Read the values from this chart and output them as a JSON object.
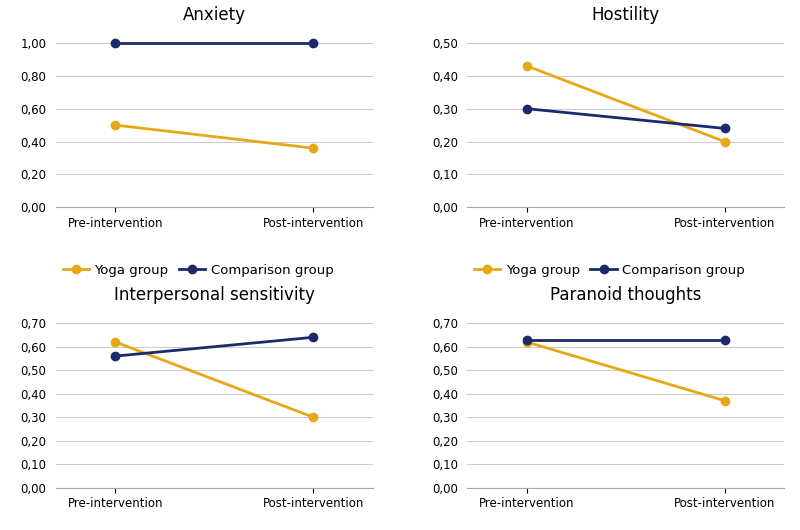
{
  "subplots": [
    {
      "title": "Anxiety",
      "ylim": [
        0,
        1.1
      ],
      "yticks": [
        0.0,
        0.2,
        0.4,
        0.6,
        0.8,
        1.0
      ],
      "yoga": [
        0.5,
        0.36
      ],
      "comparison": [
        1.0,
        1.0
      ]
    },
    {
      "title": "Hostility",
      "ylim": [
        0,
        0.55
      ],
      "yticks": [
        0.0,
        0.1,
        0.2,
        0.3,
        0.4,
        0.5
      ],
      "yoga": [
        0.43,
        0.2
      ],
      "comparison": [
        0.3,
        0.24
      ]
    },
    {
      "title": "Interpersonal sensitivity",
      "ylim": [
        0,
        0.77
      ],
      "yticks": [
        0.0,
        0.1,
        0.2,
        0.3,
        0.4,
        0.5,
        0.6,
        0.7
      ],
      "yoga": [
        0.62,
        0.3
      ],
      "comparison": [
        0.56,
        0.64
      ]
    },
    {
      "title": "Paranoid thoughts",
      "ylim": [
        0,
        0.77
      ],
      "yticks": [
        0.0,
        0.1,
        0.2,
        0.3,
        0.4,
        0.5,
        0.6,
        0.7
      ],
      "yoga": [
        0.62,
        0.37
      ],
      "comparison": [
        0.63,
        0.63
      ]
    }
  ],
  "xticklabels": [
    "Pre-intervention",
    "Post-intervention"
  ],
  "yoga_color": "#E6A817",
  "comparison_color": "#1B2A6B",
  "yoga_label": "Yoga group",
  "comparison_label": "Comparison group",
  "marker": "o",
  "markersize": 6,
  "linewidth": 2.0,
  "background_color": "#ffffff",
  "grid_color": "#cccccc",
  "title_fontsize": 12,
  "tick_fontsize": 8.5,
  "legend_fontsize": 9.5
}
